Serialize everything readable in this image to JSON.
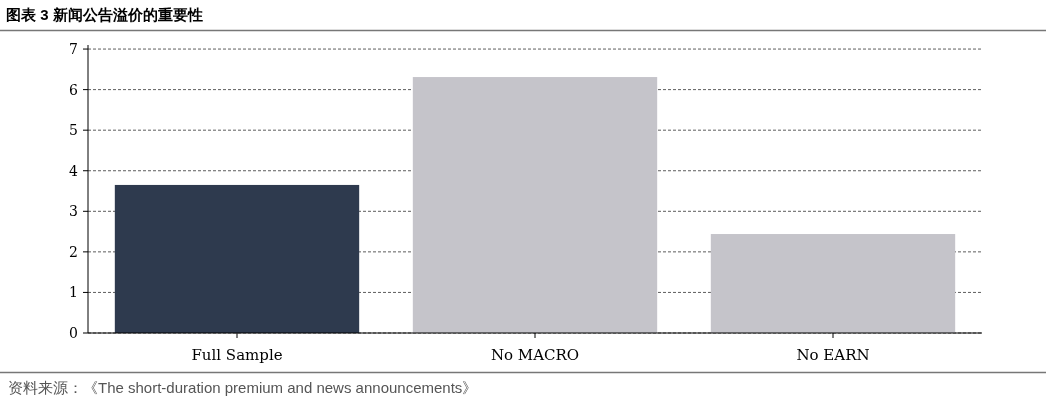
{
  "chart_data": {
    "type": "bar",
    "title": "图表 3 新闻公告溢价的重要性",
    "categories": [
      "Full Sample",
      "No MACRO",
      "No EARN"
    ],
    "values": [
      3.65,
      6.31,
      2.44
    ],
    "colors": [
      "#2e3a4e",
      "#c5c4ca",
      "#c5c4ca"
    ],
    "ylim": [
      0,
      7.1
    ],
    "yticks": [
      0,
      1,
      2,
      3,
      4,
      5,
      6,
      7
    ],
    "grid": "y",
    "annotations": [
      "资料来源：《The short-duration premium and news announcements》"
    ]
  }
}
